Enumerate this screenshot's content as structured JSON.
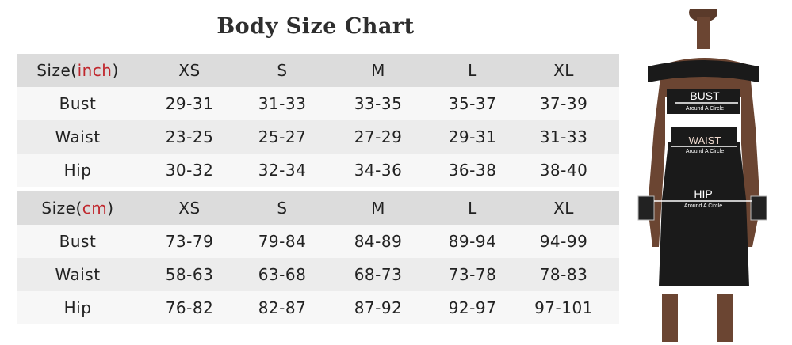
{
  "title": "Body Size Chart",
  "tables": [
    {
      "header": {
        "prefix": "Size(",
        "unit": "inch",
        "suffix": ")",
        "sizes": [
          "XS",
          "S",
          "M",
          "L",
          "XL"
        ]
      },
      "rows": [
        {
          "label": "Bust",
          "values": [
            "29-31",
            "31-33",
            "33-35",
            "35-37",
            "37-39"
          ]
        },
        {
          "label": "Waist",
          "values": [
            "23-25",
            "25-27",
            "27-29",
            "29-31",
            "31-33"
          ]
        },
        {
          "label": "Hip",
          "values": [
            "30-32",
            "32-34",
            "34-36",
            "36-38",
            "38-40"
          ]
        }
      ]
    },
    {
      "header": {
        "prefix": "Size(",
        "unit": "cm",
        "suffix": ")",
        "sizes": [
          "XS",
          "S",
          "M",
          "L",
          "XL"
        ]
      },
      "rows": [
        {
          "label": "Bust",
          "values": [
            "73-79",
            "79-84",
            "84-89",
            "89-94",
            "94-99"
          ]
        },
        {
          "label": "Waist",
          "values": [
            "58-63",
            "63-68",
            "68-73",
            "73-78",
            "78-83"
          ]
        },
        {
          "label": "Hip",
          "values": [
            "76-82",
            "82-87",
            "87-92",
            "92-97",
            "97-101"
          ]
        }
      ]
    }
  ],
  "figure": {
    "bust": {
      "label": "BUST",
      "sub": "Around A Circle"
    },
    "waist": {
      "label": "WAIST",
      "sub": "Around A Circle"
    },
    "hip": {
      "label": "HIP",
      "sub": "Around A Circle"
    }
  },
  "colors": {
    "header_bg": "#dcdcdc",
    "row_light": "#f7f7f7",
    "row_mid": "#ececec",
    "unit_red": "#c0272d",
    "dress": "#1a1a1a"
  }
}
